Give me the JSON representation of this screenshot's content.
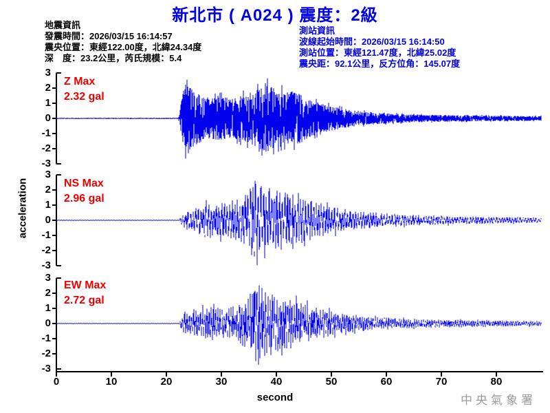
{
  "header": {
    "title": "新北市 ( A024 )  震度：2級"
  },
  "info_left": {
    "heading": "地震資訊",
    "lines": [
      "發震時間：2026/03/15 16:14:57",
      "震央位置：東經122.00度，北緯24.34度",
      "深　度：23.2公里，芮氏規模：5.4"
    ]
  },
  "info_right": {
    "heading": "測站資訊",
    "lines": [
      "波線起始時間：2026/03/15 16:14:50",
      "測站位置：東經121.47度，北緯25.02度",
      "震央距：92.1公里，反方位角：145.07度"
    ]
  },
  "watermark": "中央氣象署",
  "colors": {
    "title_blue": "#0000e6",
    "trace_blue": "#0000ee",
    "label_red": "#ec0000",
    "axis_black": "#000000",
    "watermark_gray": "#9c9c9c"
  },
  "chart_data": {
    "type": "line",
    "title": "新北市 ( A024 )  震度：2級",
    "xlabel": "second",
    "ylabel": "acceleration",
    "unit": "gal",
    "x_range": [
      0,
      88.5
    ],
    "x_ticks": [
      0,
      10,
      20,
      30,
      40,
      50,
      60,
      70,
      80
    ],
    "y_range": [
      -3,
      3
    ],
    "y_ticks": [
      3,
      2,
      1,
      0,
      -1,
      -2,
      -3
    ],
    "grid": false,
    "legend": "none",
    "panels": [
      {
        "component": "Z",
        "label": "Z Max",
        "max_gal": 2.32,
        "max_label": "2.32 gal",
        "onset_s": 22.5,
        "seed": 101,
        "texture": {
          "kind": "dense",
          "subsamples": 6
        },
        "peaks": [
          {
            "t": 23.6,
            "v": 2.1
          },
          {
            "t": 24.0,
            "v": -2.3
          },
          {
            "t": 36.9,
            "v": -2.2
          },
          {
            "t": 38.0,
            "v": 2.32
          },
          {
            "t": 41.0,
            "v": 2.2
          }
        ],
        "envelope": [
          [
            0,
            0.035
          ],
          [
            22.2,
            0.04
          ],
          [
            22.5,
            0.3
          ],
          [
            22.9,
            1.6
          ],
          [
            23.5,
            2.25
          ],
          [
            25,
            1.9
          ],
          [
            26.5,
            1.5
          ],
          [
            28,
            1.35
          ],
          [
            30,
            1.45
          ],
          [
            32,
            1.3
          ],
          [
            34,
            1.55
          ],
          [
            36,
            1.8
          ],
          [
            37.5,
            2.1
          ],
          [
            38.5,
            2.25
          ],
          [
            40,
            1.9
          ],
          [
            41.5,
            1.75
          ],
          [
            43,
            1.8
          ],
          [
            44.5,
            1.6
          ],
          [
            46,
            1.25
          ],
          [
            48,
            1.0
          ],
          [
            50,
            0.85
          ],
          [
            52,
            0.65
          ],
          [
            54,
            0.55
          ],
          [
            56,
            0.45
          ],
          [
            58,
            0.4
          ],
          [
            61,
            0.32
          ],
          [
            64,
            0.27
          ],
          [
            68,
            0.24
          ],
          [
            72,
            0.22
          ],
          [
            76,
            0.2
          ],
          [
            80,
            0.18
          ],
          [
            84,
            0.17
          ],
          [
            88.5,
            0.16
          ]
        ]
      },
      {
        "component": "NS",
        "label": "NS Max",
        "max_gal": 2.96,
        "max_label": "2.96 gal",
        "onset_s": 22.8,
        "seed": 202,
        "texture": {
          "kind": "osc",
          "freq": 2.1,
          "subsamples": 4
        },
        "peaks": [
          {
            "t": 36.2,
            "v": 2.6
          },
          {
            "t": 36.6,
            "v": -2.96
          },
          {
            "t": 37.9,
            "v": -2.5
          },
          {
            "t": 43.0,
            "v": -1.9
          }
        ],
        "envelope": [
          [
            0,
            0.018
          ],
          [
            22.4,
            0.02
          ],
          [
            22.8,
            0.3
          ],
          [
            23.5,
            0.6
          ],
          [
            25,
            0.85
          ],
          [
            27,
            1.05
          ],
          [
            29,
            1.15
          ],
          [
            31,
            1.1
          ],
          [
            33,
            1.4
          ],
          [
            34.5,
            1.7
          ],
          [
            35.8,
            2.3
          ],
          [
            36.6,
            2.96
          ],
          [
            37.3,
            2.5
          ],
          [
            38.2,
            2.1
          ],
          [
            39.5,
            1.9
          ],
          [
            41,
            2.0
          ],
          [
            42.5,
            1.7
          ],
          [
            44,
            1.45
          ],
          [
            45.5,
            1.35
          ],
          [
            47,
            1.25
          ],
          [
            48.5,
            1.0
          ],
          [
            50,
            0.9
          ],
          [
            52,
            0.75
          ],
          [
            54,
            0.6
          ],
          [
            56,
            0.55
          ],
          [
            58,
            0.5
          ],
          [
            61,
            0.42
          ],
          [
            64,
            0.36
          ],
          [
            67,
            0.32
          ],
          [
            70,
            0.3
          ],
          [
            74,
            0.26
          ],
          [
            78,
            0.23
          ],
          [
            82,
            0.21
          ],
          [
            88.5,
            0.17
          ]
        ]
      },
      {
        "component": "EW",
        "label": "EW Max",
        "max_gal": 2.72,
        "max_label": "2.72 gal",
        "onset_s": 22.8,
        "seed": 303,
        "texture": {
          "kind": "osc",
          "freq": 2.5,
          "subsamples": 4
        },
        "peaks": [
          {
            "t": 35.9,
            "v": 2.0
          },
          {
            "t": 36.8,
            "v": -2.72
          },
          {
            "t": 37.4,
            "v": 2.35
          }
        ],
        "envelope": [
          [
            0,
            0.025
          ],
          [
            22.4,
            0.03
          ],
          [
            22.8,
            0.35
          ],
          [
            23.5,
            0.7
          ],
          [
            25,
            0.9
          ],
          [
            27,
            1.0
          ],
          [
            29,
            1.05
          ],
          [
            31,
            1.0
          ],
          [
            33,
            1.25
          ],
          [
            34.5,
            1.5
          ],
          [
            35.8,
            2.1
          ],
          [
            36.8,
            2.72
          ],
          [
            37.8,
            2.3
          ],
          [
            39,
            2.0
          ],
          [
            40.5,
            1.75
          ],
          [
            42,
            1.6
          ],
          [
            43.5,
            1.5
          ],
          [
            45,
            1.3
          ],
          [
            46.5,
            1.15
          ],
          [
            48,
            1.0
          ],
          [
            50,
            0.8
          ],
          [
            52,
            0.65
          ],
          [
            54,
            0.55
          ],
          [
            56,
            0.48
          ],
          [
            58,
            0.42
          ],
          [
            61,
            0.36
          ],
          [
            64,
            0.3
          ],
          [
            67,
            0.28
          ],
          [
            70,
            0.26
          ],
          [
            74,
            0.24
          ],
          [
            78,
            0.22
          ],
          [
            82,
            0.2
          ],
          [
            88.5,
            0.17
          ]
        ]
      }
    ]
  }
}
